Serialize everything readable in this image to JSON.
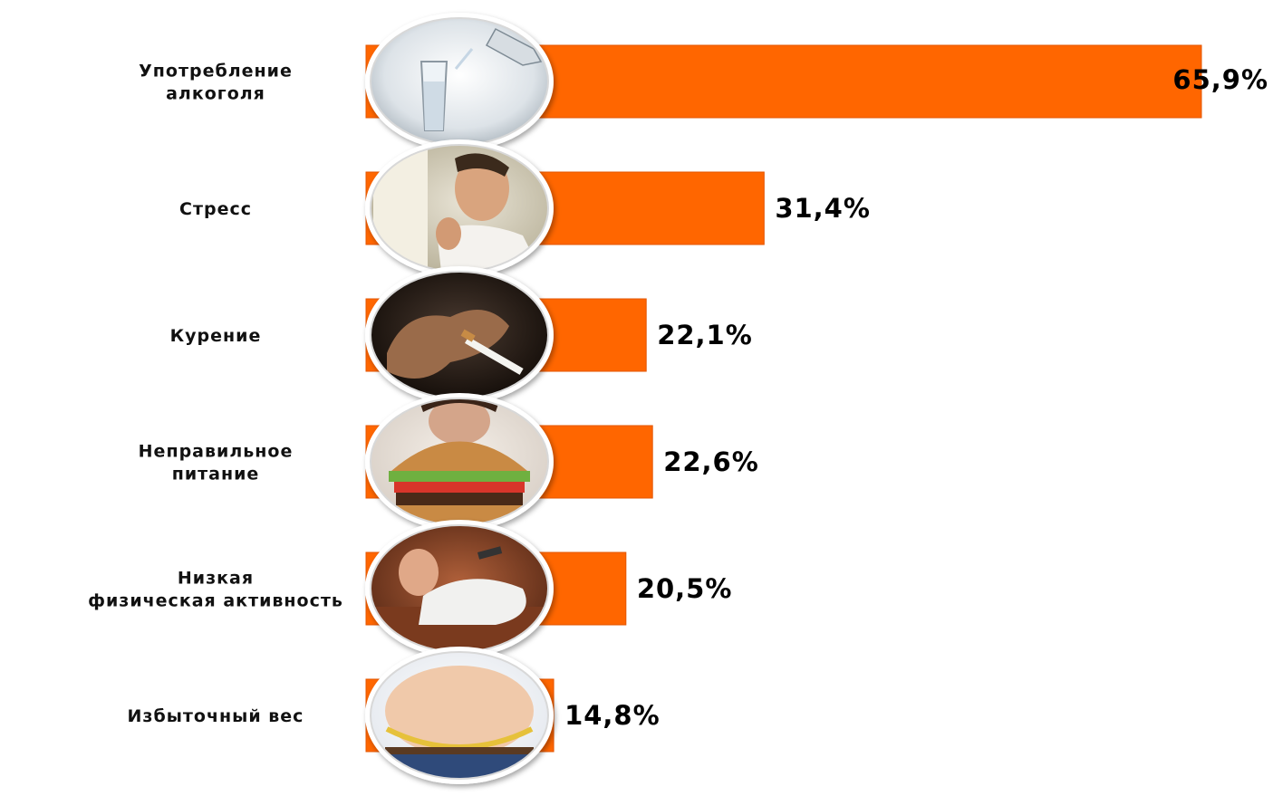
{
  "chart_data": {
    "type": "bar",
    "orientation": "horizontal",
    "title": "",
    "xlabel": "",
    "ylabel": "",
    "xlim": [
      0,
      65.9
    ],
    "grid": false,
    "legend": "none",
    "bar_color": "#ff6600",
    "categories": [
      [
        "Употребление",
        "алкоголя"
      ],
      [
        "Стресс"
      ],
      [
        "Курение"
      ],
      [
        "Неправильное",
        "питание"
      ],
      [
        "Низкая",
        "физическая активность"
      ],
      [
        "Избыточный вес"
      ]
    ],
    "values": [
      65.9,
      31.4,
      22.1,
      22.6,
      20.5,
      14.8
    ],
    "value_labels": [
      "65,9%",
      "31,4%",
      "22,1%",
      "22,6%",
      "20,5%",
      "14,8%"
    ],
    "icons": [
      "vodka-pour-icon",
      "stressed-man-icon",
      "cigarette-hand-icon",
      "burger-eating-icon",
      "couch-potato-icon",
      "belly-measure-icon"
    ]
  }
}
